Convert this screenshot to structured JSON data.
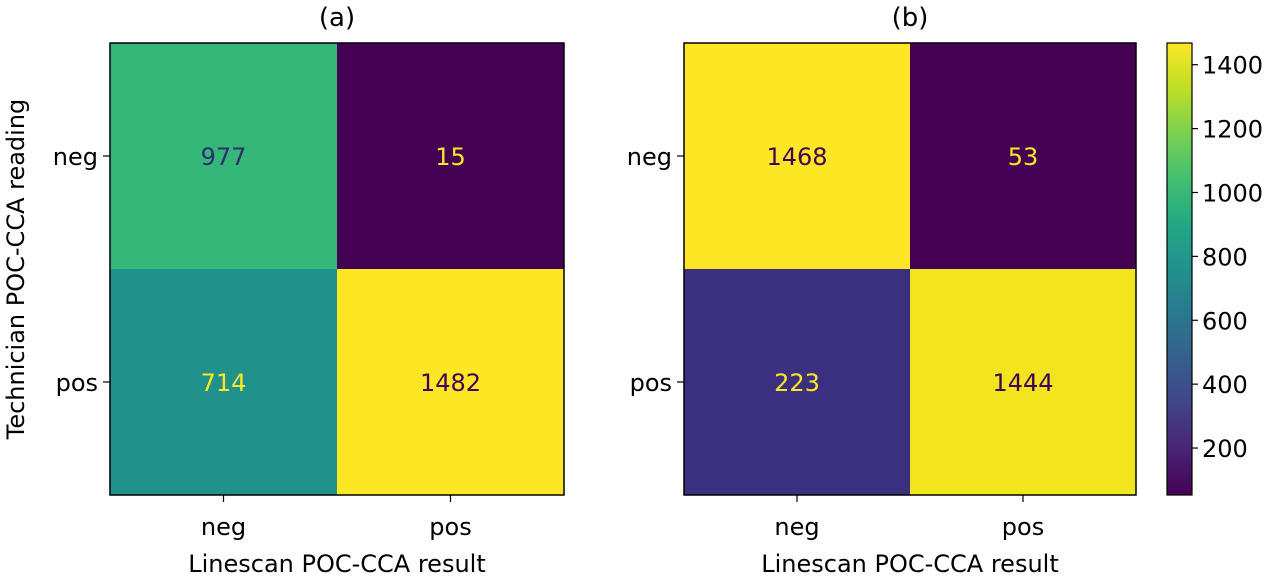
{
  "chart_data": [
    {
      "type": "heatmap",
      "title": "(a)",
      "xlabel": "Linescan POC-CCA result",
      "ylabel": "Technician POC-CCA reading",
      "x_categories": [
        "neg",
        "pos"
      ],
      "y_categories": [
        "neg",
        "pos"
      ],
      "values": [
        [
          977,
          15
        ],
        [
          714,
          1482
        ]
      ],
      "cell_colors": [
        [
          "#35b779",
          "#440154"
        ],
        [
          "#21918c",
          "#fde725"
        ]
      ],
      "text_colors": [
        [
          "#2d2d6e",
          "#fde725"
        ],
        [
          "#fde725",
          "#440154"
        ]
      ]
    },
    {
      "type": "heatmap",
      "title": "(b)",
      "xlabel": "Linescan POC-CCA result",
      "ylabel": "",
      "x_categories": [
        "neg",
        "pos"
      ],
      "y_categories": [
        "neg",
        "pos"
      ],
      "values": [
        [
          1468,
          53
        ],
        [
          223,
          1444
        ]
      ],
      "cell_colors": [
        [
          "#fde725",
          "#440154"
        ],
        [
          "#3b2f80",
          "#f1e51d"
        ]
      ],
      "text_colors": [
        [
          "#440154",
          "#fde725"
        ],
        [
          "#fde725",
          "#440154"
        ]
      ]
    }
  ],
  "colorbar": {
    "colormap": "viridis",
    "range": [
      53,
      1468
    ],
    "ticks": [
      200,
      400,
      600,
      800,
      1000,
      1200,
      1400
    ],
    "tick_labels": [
      "200",
      "400",
      "600",
      "800",
      "1000",
      "1200",
      "1400"
    ]
  }
}
